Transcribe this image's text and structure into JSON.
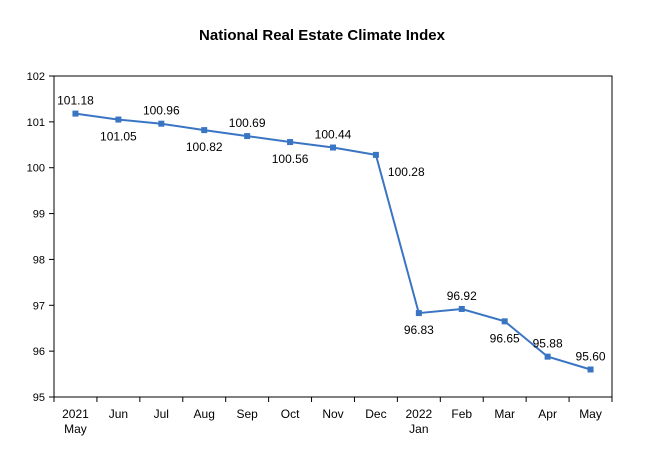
{
  "chart_data": {
    "type": "line",
    "title": "National Real Estate Climate Index",
    "xlabel": "",
    "ylabel": "",
    "ylim": [
      95,
      102
    ],
    "yticks": [
      "95",
      "96",
      "97",
      "98",
      "99",
      "100",
      "101",
      "102"
    ],
    "categories": [
      [
        "2021",
        "May"
      ],
      [
        "Jun"
      ],
      [
        "Jul"
      ],
      [
        "Aug"
      ],
      [
        "Sep"
      ],
      [
        "Oct"
      ],
      [
        "Nov"
      ],
      [
        "Dec"
      ],
      [
        "2022",
        "Jan"
      ],
      [
        "Feb"
      ],
      [
        "Mar"
      ],
      [
        "Apr"
      ],
      [
        "May"
      ]
    ],
    "values": [
      101.18,
      101.05,
      100.96,
      100.82,
      100.69,
      100.56,
      100.44,
      100.28,
      96.83,
      96.92,
      96.65,
      95.88,
      95.6
    ],
    "value_labels": [
      "101.18",
      "101.05",
      "100.96",
      "100.82",
      "100.69",
      "100.56",
      "100.44",
      "100.28",
      "96.83",
      "96.92",
      "96.65",
      "95.88",
      "95.60"
    ],
    "label_position": [
      "above",
      "below",
      "above",
      "below",
      "above",
      "below",
      "above",
      "right",
      "below",
      "above",
      "below",
      "above",
      "above"
    ],
    "line_color": "#3a75c4",
    "grid": false,
    "legend": "none"
  }
}
